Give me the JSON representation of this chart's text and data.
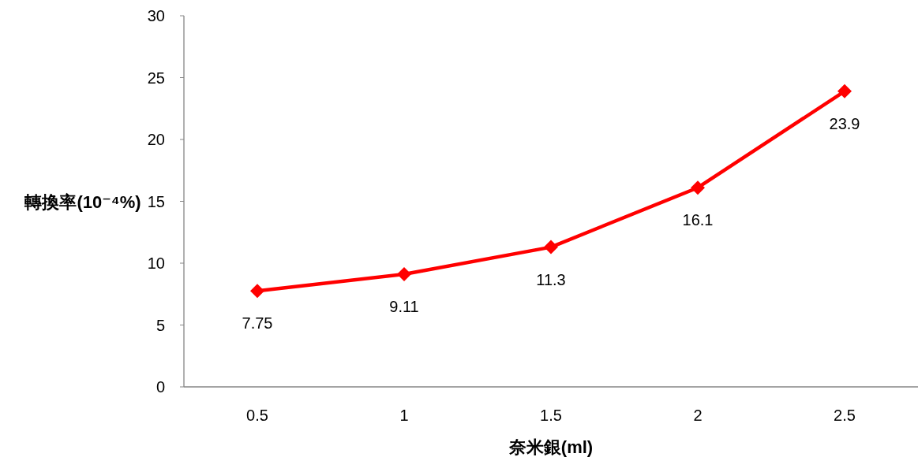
{
  "chart_data": {
    "type": "line",
    "xlabel": "奈米銀(ml)",
    "ylabel": "轉換率(10⁻⁴%)",
    "categories": [
      "0.5",
      "1",
      "1.5",
      "2",
      "2.5"
    ],
    "series": [
      {
        "color": "#ff0000",
        "values": [
          7.75,
          9.11,
          11.3,
          16.1,
          23.9
        ]
      }
    ],
    "ylim": [
      0,
      30
    ],
    "yticks": [
      0,
      5,
      10,
      15,
      20,
      25,
      30
    ],
    "marker": "diamond",
    "data_labels": true
  }
}
